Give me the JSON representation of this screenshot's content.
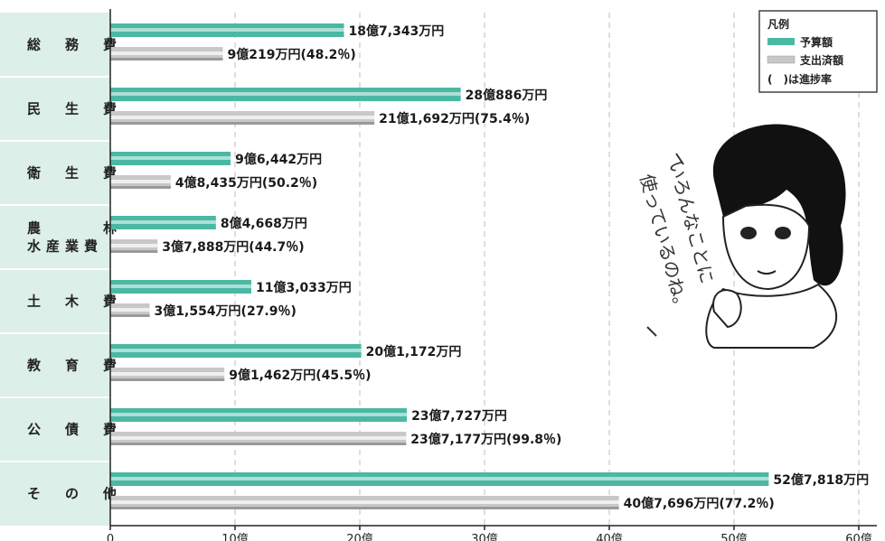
{
  "chart_data": {
    "type": "bar",
    "orientation": "horizontal",
    "categories": [
      "総務費",
      "民生費",
      "衛生費",
      "農林水産業費",
      "土木費",
      "教育費",
      "公債費",
      "その他"
    ],
    "category_display": [
      [
        "総　務　費"
      ],
      [
        "民　生　費"
      ],
      [
        "衛　生　費"
      ],
      [
        "農　　　林",
        "水産業費"
      ],
      [
        "土　木　費"
      ],
      [
        "教　育　費"
      ],
      [
        "公　債　費"
      ],
      [
        "そ　の　他"
      ]
    ],
    "series": [
      {
        "name": "予算額",
        "color": "#4bb8a4",
        "values": [
          18.7343,
          28.0886,
          9.6442,
          8.4668,
          11.3033,
          20.1172,
          23.7727,
          52.7818
        ],
        "labels": [
          "18億7,343万円",
          "28億886万円",
          "9億6,442万円",
          "8億4,668万円",
          "11億3,033万円",
          "20億1,172万円",
          "23億7,727万円",
          "52億7,818万円"
        ]
      },
      {
        "name": "支出済額",
        "color": "#c8c8c8",
        "values": [
          9.0219,
          21.1692,
          4.8435,
          3.7888,
          3.1554,
          9.1462,
          23.7177,
          40.7696
        ],
        "labels": [
          "9億219万円(48.2％)",
          "21億1,692万円(75.4％)",
          "4億8,435万円(50.2％)",
          "3億7,888万円(44.7％)",
          "3億1,554万円(27.9％)",
          "9億1,462万円(45.5％)",
          "23億7,177万円(99.8％)",
          "40億7,696万円(77.2％)"
        ]
      }
    ],
    "xlim": [
      0,
      60
    ],
    "xticks": [
      0,
      10,
      20,
      30,
      40,
      50,
      60
    ],
    "xtick_labels": [
      "0",
      "10億",
      "20億",
      "30億",
      "40億",
      "50億",
      "60億"
    ],
    "grid": true,
    "legend": {
      "title": "凡例",
      "position": "top-right",
      "items": [
        "予算額",
        "支出済額"
      ],
      "note": "(　)は進捗率"
    }
  },
  "illustration": {
    "speech": [
      "いろんなことに",
      "使っているのね。"
    ]
  }
}
